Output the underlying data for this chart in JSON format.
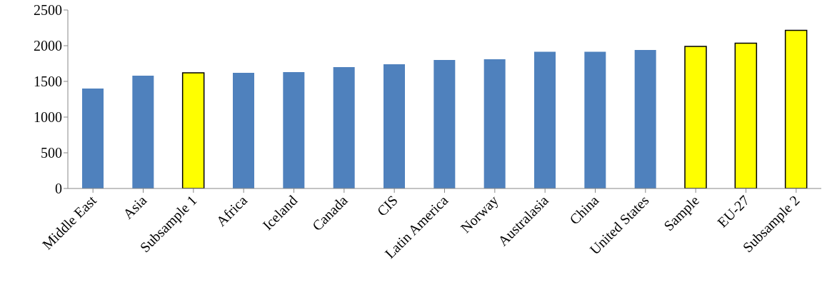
{
  "chart_data": {
    "type": "bar",
    "categories": [
      "Middle East",
      "Asia",
      "Subsample 1",
      "Africa",
      "Iceland",
      "Canada",
      "CIS",
      "Latin America",
      "Norway",
      "Australasia",
      "China",
      "United States",
      "Sample",
      "EU-27",
      "Subsample 2"
    ],
    "values": [
      1400,
      1580,
      1620,
      1620,
      1630,
      1700,
      1740,
      1800,
      1810,
      1915,
      1915,
      1940,
      1990,
      2035,
      2215
    ],
    "colors": [
      "#4f81bd",
      "#4f81bd",
      "#ffff00",
      "#4f81bd",
      "#4f81bd",
      "#4f81bd",
      "#4f81bd",
      "#4f81bd",
      "#4f81bd",
      "#4f81bd",
      "#4f81bd",
      "#4f81bd",
      "#ffff00",
      "#ffff00",
      "#ffff00"
    ],
    "ylim": [
      0,
      2500
    ],
    "yticks": [
      0,
      500,
      1000,
      1500,
      2000,
      2500
    ],
    "grid": false,
    "legend": false
  }
}
